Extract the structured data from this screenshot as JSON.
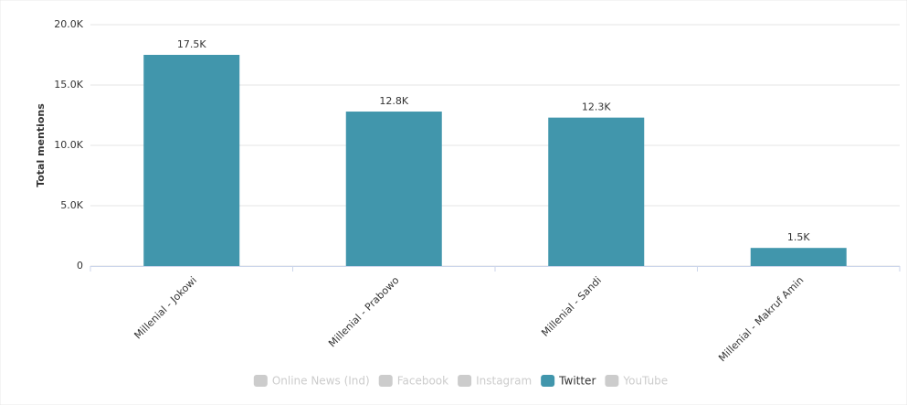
{
  "chart_data": {
    "type": "bar",
    "categories": [
      "Millenial - Jokowi",
      "Millenial - Prabowo",
      "Millenial - Sandi",
      "Millenial - Makruf Amin"
    ],
    "y_label": "Total mentions",
    "ylim": [
      0,
      20000
    ],
    "yticks": [
      0,
      {
        "value": 5000,
        "label": "5.0K"
      },
      {
        "value": 10000,
        "label": "10.0K"
      },
      {
        "value": 15000,
        "label": "15.0K"
      },
      {
        "value": 20000,
        "label": "20.0K"
      }
    ],
    "grid": true,
    "series": [
      {
        "name": "Online News (Ind)",
        "color": "#cccccc",
        "visible": false
      },
      {
        "name": "Facebook",
        "color": "#cccccc",
        "visible": false
      },
      {
        "name": "Instagram",
        "color": "#cccccc",
        "visible": false
      },
      {
        "name": "Twitter",
        "color": "#4196ac",
        "visible": true,
        "values": [
          17500,
          12800,
          12300,
          1500
        ],
        "value_labels": [
          "17.5K",
          "12.8K",
          "12.3K",
          "1.5K"
        ]
      },
      {
        "name": "YouTube",
        "color": "#cccccc",
        "visible": false
      }
    ]
  }
}
